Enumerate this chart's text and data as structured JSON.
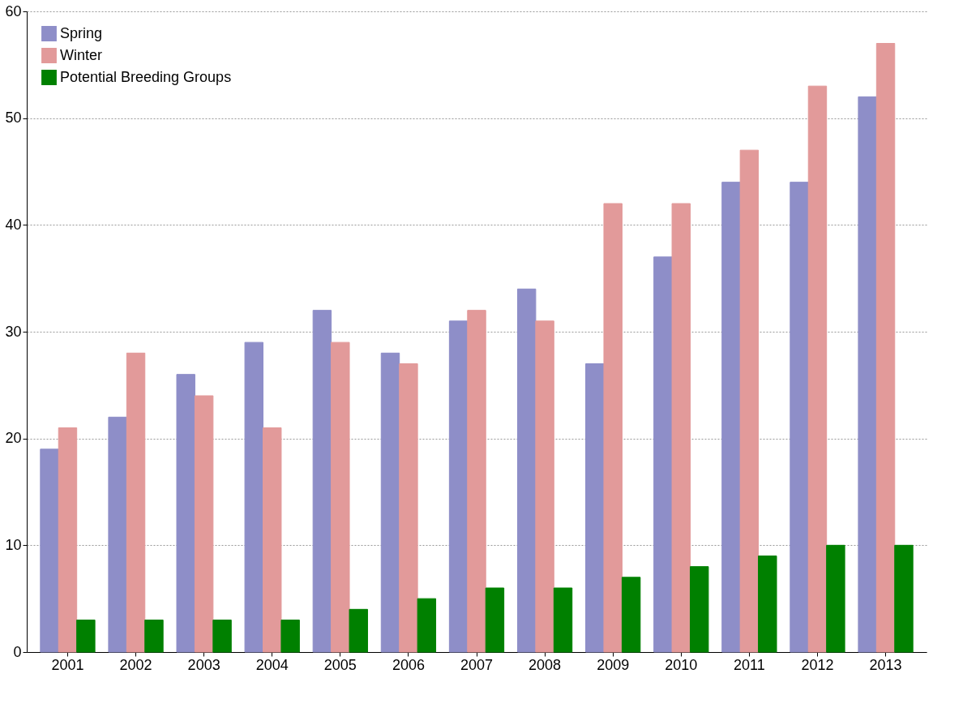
{
  "chart_data": {
    "type": "bar",
    "categories": [
      "2001",
      "2002",
      "2003",
      "2004",
      "2005",
      "2006",
      "2007",
      "2008",
      "2009",
      "2010",
      "2011",
      "2012",
      "2013"
    ],
    "series": [
      {
        "name": "Spring",
        "color": "#8e8ec8",
        "values": [
          19,
          22,
          26,
          29,
          32,
          28,
          31,
          34,
          27,
          37,
          44,
          44,
          52
        ]
      },
      {
        "name": "Winter",
        "color": "#e29a9a",
        "values": [
          21,
          28,
          24,
          21,
          29,
          27,
          32,
          31,
          42,
          42,
          47,
          53,
          57
        ]
      },
      {
        "name": "Potential Breeding Groups",
        "color": "#008000",
        "values": [
          3,
          3,
          3,
          3,
          4,
          5,
          6,
          6,
          7,
          8,
          9,
          10,
          10
        ]
      }
    ],
    "ylim": [
      0,
      60
    ],
    "yticks": [
      0,
      10,
      20,
      30,
      40,
      50,
      60
    ],
    "grid": "y",
    "legend": "top left"
  }
}
